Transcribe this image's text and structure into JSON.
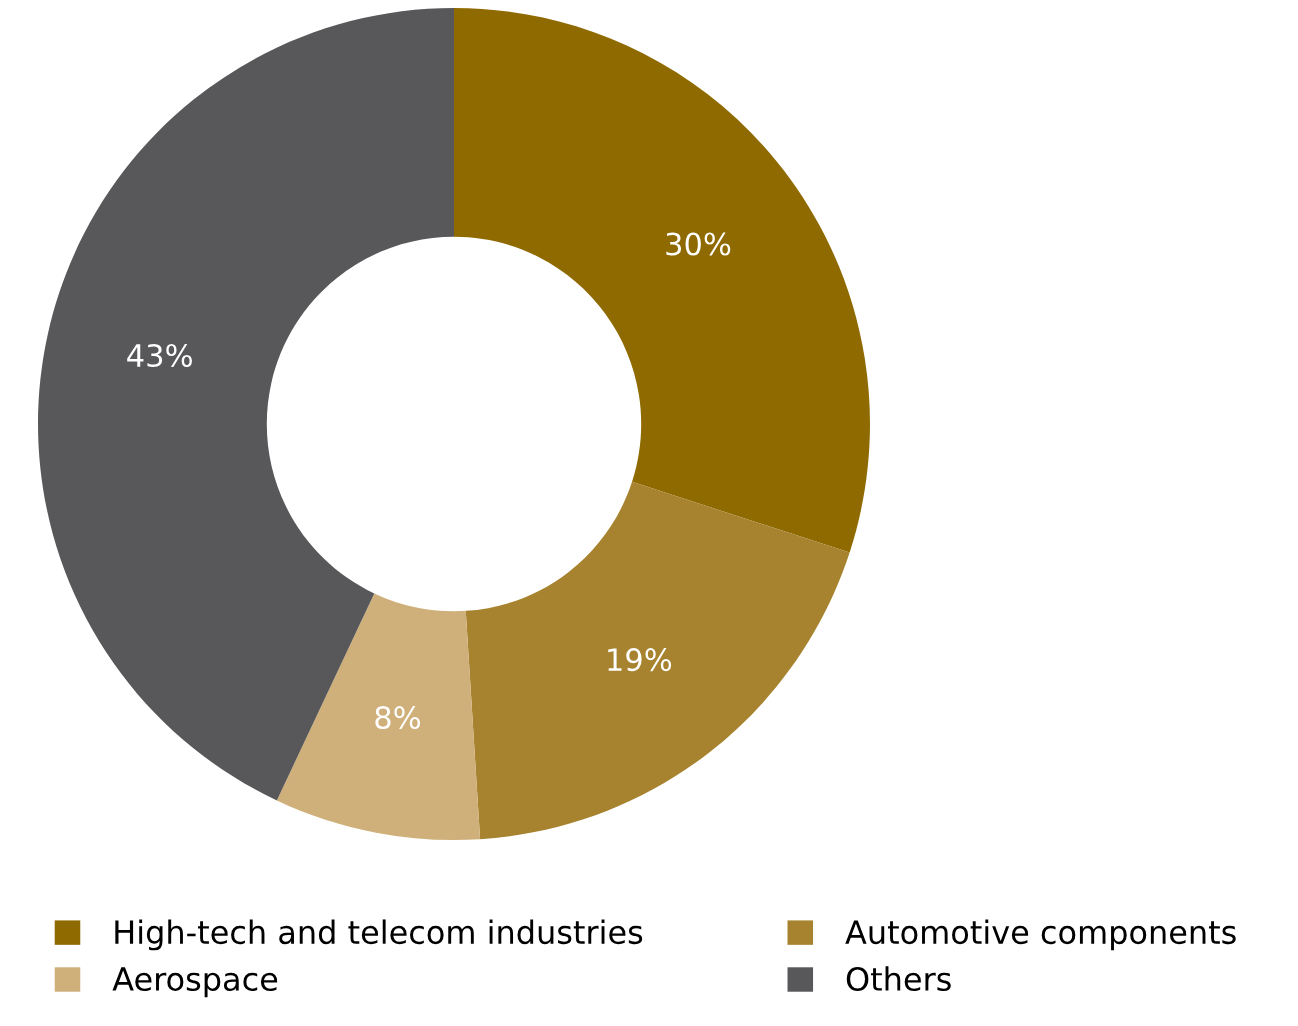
{
  "chart_data": {
    "type": "donut",
    "categories": [
      "High-tech and telecom industries",
      "Automotive components",
      "Aerospace",
      "Others"
    ],
    "values": [
      30,
      19,
      8,
      43
    ],
    "colors": [
      "#8f6a00",
      "#a7832f",
      "#cfb07a",
      "#58585a"
    ],
    "value_labels": [
      "30%",
      "19%",
      "8%",
      "43%"
    ],
    "legend": "bottom"
  }
}
